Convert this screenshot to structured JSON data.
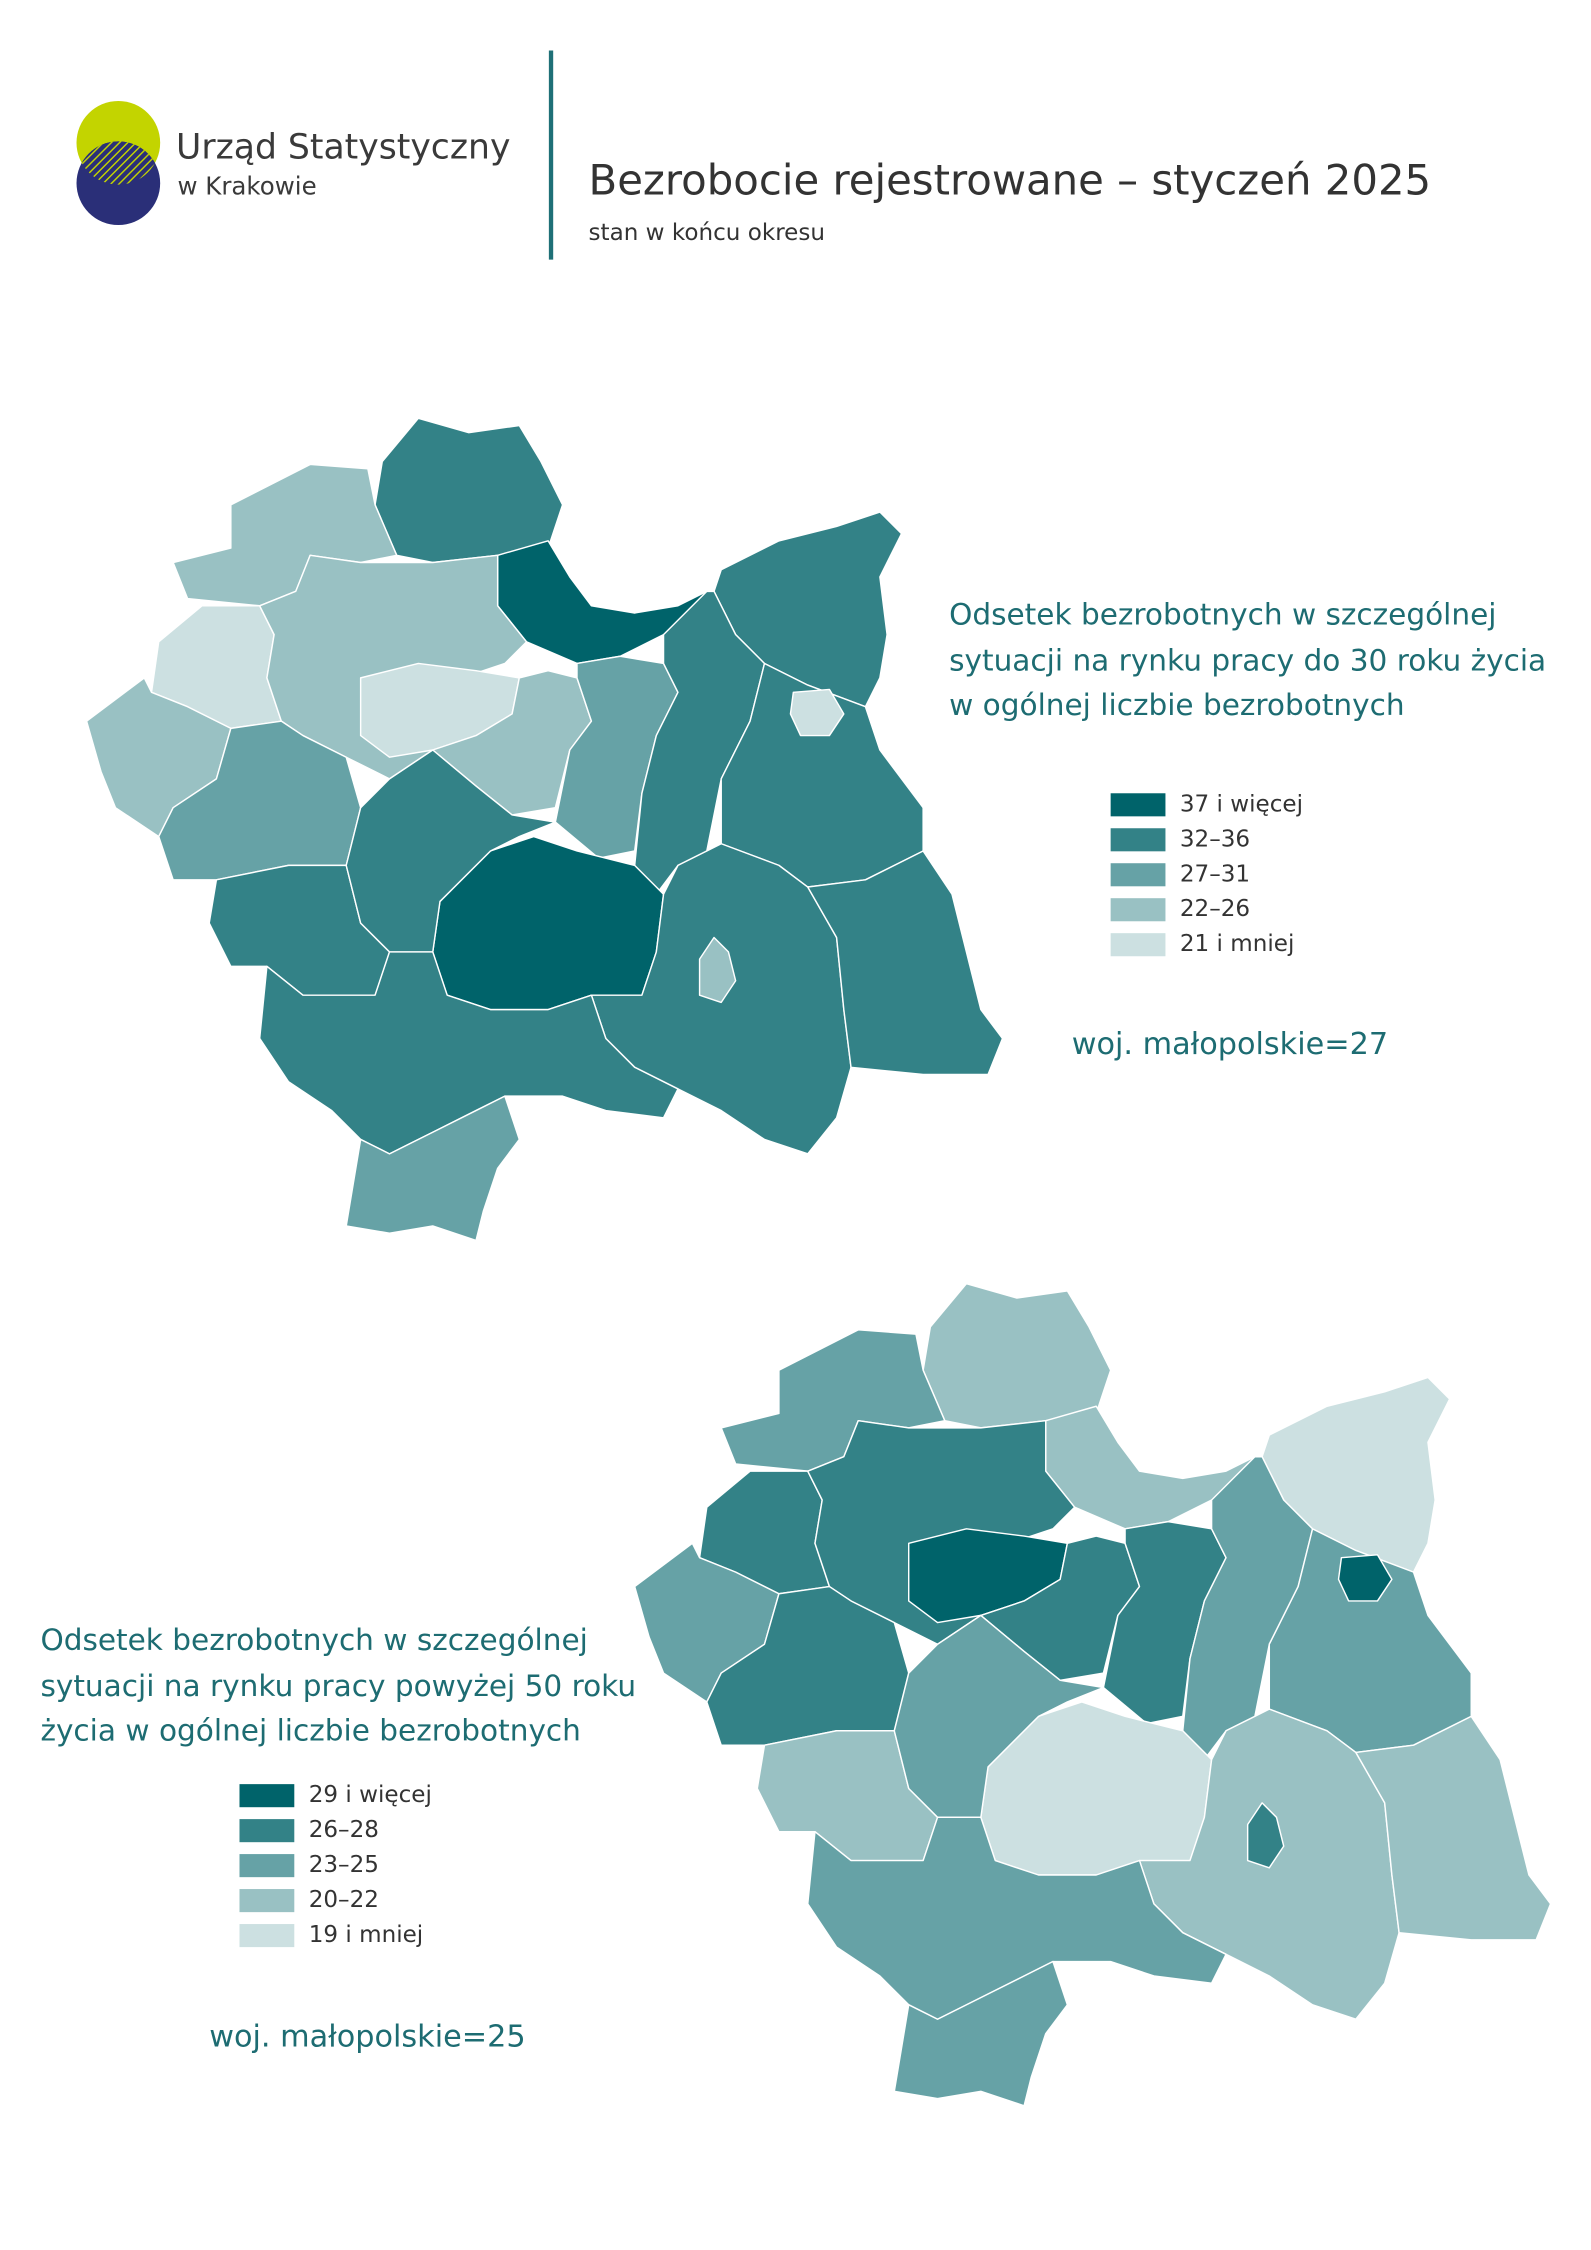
{
  "header": {
    "logo_line1": "Urząd Statystyczny",
    "logo_line2": "w Krakowie",
    "title": "Bezrobocie rejestrowane – styczeń 2025",
    "subtitle": "stan w końcu okresu"
  },
  "maps": [
    {
      "title_lines": [
        "Odsetek bezrobotnych w szczególnej",
        "sytuacji na rynku pracy do 30 roku życia",
        "w ogólnej liczbie bezrobotnych"
      ],
      "legend": [
        {
          "label": "37 i więcej",
          "color": "#00636a"
        },
        {
          "label": "32–36",
          "color": "#338287"
        },
        {
          "label": "27–31",
          "color": "#66a2a6"
        },
        {
          "label": "22–26",
          "color": "#99c1c3"
        },
        {
          "label": "21 i mniej",
          "color": "#cce0e1"
        }
      ],
      "summary": "woj. małopolskie=27"
    },
    {
      "title_lines": [
        "Odsetek bezrobotnych w szczególnej",
        "sytuacji na rynku pracy powyżej 50 roku",
        "życia w ogólnej liczbie bezrobotnych"
      ],
      "legend": [
        {
          "label": "29 i więcej",
          "color": "#00636a"
        },
        {
          "label": "26–28",
          "color": "#338287"
        },
        {
          "label": "23–25",
          "color": "#66a2a6"
        },
        {
          "label": "20–22",
          "color": "#99c1c3"
        },
        {
          "label": "19 i mniej",
          "color": "#cce0e1"
        }
      ],
      "summary": "woj. małopolskie=25"
    }
  ]
}
